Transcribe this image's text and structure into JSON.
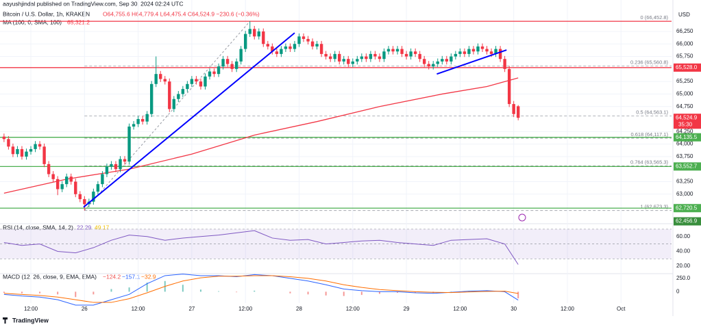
{
  "chart_data": {
    "type": "candlestick",
    "byline": "aayushjindal published on TradingView.com, Sep 30, 2024 02:24 UTC",
    "symbol": "Bitcoin / U.S. Dollar, 1h, KRAKEN",
    "ohlc_text": "O64,755.6  H64,779.4  L64,475.4  C64,524.9  −230.6 (−0.36%)",
    "currency": "USD",
    "watermark": "TradingView",
    "up_color": "#089981",
    "down_color": "#f23645",
    "grid": true,
    "xlim": [
      5.1,
      155.3
    ],
    "xticks": [
      {
        "value": 12,
        "label": "12:00"
      },
      {
        "value": 24,
        "label": "26"
      },
      {
        "value": 36,
        "label": "12:00"
      },
      {
        "value": 48,
        "label": "27"
      },
      {
        "value": 60,
        "label": "12:00"
      },
      {
        "value": 72,
        "label": "28"
      },
      {
        "value": 84,
        "label": "12:00"
      },
      {
        "value": 96,
        "label": "29"
      },
      {
        "value": 108,
        "label": "12:00"
      },
      {
        "value": 120,
        "label": "30"
      },
      {
        "value": 132,
        "label": "12:00"
      },
      {
        "value": 144,
        "label": "Oct"
      }
    ],
    "ylim": [
      62437,
      66878
    ],
    "yticks": [
      {
        "value": 66250,
        "label": "66,250"
      },
      {
        "value": 66000,
        "label": "66,000"
      },
      {
        "value": 65750,
        "label": "65,750"
      },
      {
        "value": 65250,
        "label": "65,250"
      },
      {
        "value": 65000,
        "label": "65,000"
      },
      {
        "value": 64750,
        "label": "64,750"
      },
      {
        "value": 64250,
        "label": "64,250"
      },
      {
        "value": 64000,
        "label": "64,000"
      },
      {
        "value": 63750,
        "label": "63,750"
      },
      {
        "value": 63250,
        "label": "63,250"
      },
      {
        "value": 63000,
        "label": "63,000"
      }
    ],
    "x": [
      6,
      7,
      8,
      9,
      10,
      11,
      12,
      13,
      14,
      15,
      16,
      17,
      18,
      19,
      20,
      21,
      22,
      23,
      24,
      25,
      26,
      27,
      28,
      29,
      30,
      31,
      32,
      33,
      34,
      35,
      36,
      37,
      38,
      39,
      40,
      41,
      42,
      43,
      44,
      45,
      46,
      47,
      48,
      49,
      50,
      51,
      52,
      53,
      54,
      55,
      56,
      57,
      58,
      59,
      60,
      61,
      62,
      63,
      64,
      65,
      66,
      67,
      68,
      69,
      70,
      71,
      72,
      73,
      74,
      75,
      76,
      77,
      78,
      79,
      80,
      81,
      82,
      83,
      84,
      85,
      86,
      87,
      88,
      89,
      90,
      91,
      92,
      93,
      94,
      95,
      96,
      97,
      98,
      99,
      100,
      101,
      102,
      103,
      104,
      105,
      106,
      107,
      108,
      109,
      110,
      111,
      112,
      113,
      114,
      115,
      116,
      117,
      118,
      119,
      120,
      121
    ],
    "candles": [
      [
        64150,
        64210,
        64040,
        64100
      ],
      [
        64100,
        64160,
        63890,
        63950
      ],
      [
        63950,
        64010,
        63740,
        63800
      ],
      [
        63800,
        63960,
        63740,
        63900
      ],
      [
        63900,
        63960,
        63690,
        63750
      ],
      [
        63750,
        63910,
        63690,
        63850
      ],
      [
        63850,
        63960,
        63790,
        63900
      ],
      [
        63900,
        64060,
        63840,
        64000
      ],
      [
        64000,
        64060,
        63890,
        63950
      ],
      [
        63950,
        64010,
        63540,
        63600
      ],
      [
        63600,
        63660,
        63340,
        63400
      ],
      [
        63400,
        63460,
        63240,
        63300
      ],
      [
        63300,
        63360,
        62980,
        63100
      ],
      [
        63100,
        63260,
        63040,
        63200
      ],
      [
        63200,
        63410,
        63140,
        63350
      ],
      [
        63350,
        63410,
        63190,
        63250
      ],
      [
        63250,
        63310,
        62940,
        63000
      ],
      [
        63000,
        63060,
        62840,
        62900
      ],
      [
        62900,
        62960,
        62673,
        62800
      ],
      [
        62800,
        62910,
        62740,
        62850
      ],
      [
        62850,
        63110,
        62790,
        63050
      ],
      [
        63050,
        63260,
        62990,
        63200
      ],
      [
        63200,
        63460,
        63140,
        63400
      ],
      [
        63400,
        63610,
        63340,
        63550
      ],
      [
        63550,
        63660,
        63490,
        63600
      ],
      [
        63600,
        63660,
        63440,
        63500
      ],
      [
        63500,
        63760,
        63440,
        63700
      ],
      [
        63700,
        63760,
        63590,
        63650
      ],
      [
        63650,
        64410,
        63590,
        64350
      ],
      [
        64350,
        64460,
        64290,
        64400
      ],
      [
        64400,
        64560,
        64340,
        64500
      ],
      [
        64500,
        64560,
        64390,
        64450
      ],
      [
        64450,
        64660,
        64390,
        64600
      ],
      [
        64600,
        65260,
        64540,
        65200
      ],
      [
        65200,
        65750,
        65140,
        65400
      ],
      [
        65400,
        65460,
        65240,
        65300
      ],
      [
        65300,
        65360,
        65190,
        65250
      ],
      [
        65250,
        65310,
        64640,
        64700
      ],
      [
        64700,
        64960,
        64640,
        64900
      ],
      [
        64900,
        65060,
        64840,
        65000
      ],
      [
        65000,
        65160,
        64940,
        65100
      ],
      [
        65100,
        65260,
        65040,
        65200
      ],
      [
        65200,
        65360,
        65140,
        65300
      ],
      [
        65300,
        65360,
        65190,
        65250
      ],
      [
        65250,
        65310,
        65090,
        65150
      ],
      [
        65150,
        65410,
        65090,
        65350
      ],
      [
        65350,
        65510,
        65290,
        65450
      ],
      [
        65450,
        65510,
        65340,
        65400
      ],
      [
        65400,
        65610,
        65340,
        65550
      ],
      [
        65550,
        65760,
        65490,
        65700
      ],
      [
        65700,
        65760,
        65540,
        65600
      ],
      [
        65600,
        65660,
        65440,
        65500
      ],
      [
        65500,
        65710,
        65440,
        65650
      ],
      [
        65650,
        65960,
        65590,
        65900
      ],
      [
        65900,
        66260,
        65840,
        66200
      ],
      [
        66200,
        66452.8,
        66140,
        66300
      ],
      [
        66300,
        66360,
        66090,
        66150
      ],
      [
        66150,
        66310,
        66090,
        66250
      ],
      [
        66250,
        66310,
        65940,
        66000
      ],
      [
        66000,
        66060,
        65890,
        65950
      ],
      [
        65950,
        66010,
        65790,
        65850
      ],
      [
        65850,
        65910,
        65740,
        65800
      ],
      [
        65800,
        65960,
        65740,
        65900
      ],
      [
        65900,
        66010,
        65840,
        65950
      ],
      [
        65950,
        66010,
        65840,
        65900
      ],
      [
        65900,
        66060,
        65840,
        66000
      ],
      [
        66000,
        66210,
        65940,
        66150
      ],
      [
        66150,
        66210,
        66040,
        66100
      ],
      [
        66100,
        66160,
        65990,
        66050
      ],
      [
        66050,
        66110,
        65890,
        65950
      ],
      [
        65950,
        66060,
        65890,
        66000
      ],
      [
        66000,
        66060,
        65740,
        65800
      ],
      [
        65800,
        65860,
        65690,
        65750
      ],
      [
        65750,
        65810,
        65640,
        65700
      ],
      [
        65700,
        65860,
        65640,
        65800
      ],
      [
        65800,
        65860,
        65590,
        65650
      ],
      [
        65650,
        65760,
        65590,
        65700
      ],
      [
        65700,
        65760,
        65540,
        65600
      ],
      [
        65600,
        65710,
        65540,
        65650
      ],
      [
        65650,
        65760,
        65590,
        65700
      ],
      [
        65700,
        65810,
        65640,
        65750
      ],
      [
        65750,
        65810,
        65640,
        65700
      ],
      [
        65700,
        65860,
        65640,
        65800
      ],
      [
        65800,
        65860,
        65690,
        65750
      ],
      [
        65750,
        65810,
        65640,
        65700
      ],
      [
        65700,
        65910,
        65640,
        65850
      ],
      [
        65850,
        65960,
        65790,
        65900
      ],
      [
        65900,
        65960,
        65790,
        65850
      ],
      [
        65850,
        65960,
        65790,
        65900
      ],
      [
        65900,
        65960,
        65740,
        65800
      ],
      [
        65800,
        65860,
        65690,
        65750
      ],
      [
        65750,
        65910,
        65690,
        65850
      ],
      [
        65850,
        65910,
        65740,
        65800
      ],
      [
        65800,
        65860,
        65640,
        65700
      ],
      [
        65700,
        65760,
        65540,
        65600
      ],
      [
        65600,
        65660,
        65490,
        65550
      ],
      [
        65550,
        65660,
        65490,
        65600
      ],
      [
        65600,
        65710,
        65540,
        65650
      ],
      [
        65650,
        65760,
        65590,
        65700
      ],
      [
        65700,
        65760,
        65590,
        65650
      ],
      [
        65650,
        65810,
        65590,
        65750
      ],
      [
        65750,
        65860,
        65690,
        65800
      ],
      [
        65800,
        65910,
        65740,
        65850
      ],
      [
        65850,
        65910,
        65740,
        65800
      ],
      [
        65800,
        65960,
        65740,
        65900
      ],
      [
        65900,
        65960,
        65790,
        65850
      ],
      [
        65850,
        66010,
        65790,
        65950
      ],
      [
        65950,
        66010,
        65840,
        65900
      ],
      [
        65900,
        65960,
        65790,
        65850
      ],
      [
        65850,
        65910,
        65740,
        65800
      ],
      [
        65800,
        65960,
        65740,
        65900
      ],
      [
        65900,
        65960,
        65640,
        65700
      ],
      [
        65700,
        65760,
        65440,
        65500
      ],
      [
        65500,
        65560,
        64740,
        64800
      ],
      [
        64800,
        64860,
        64540,
        64600
      ],
      [
        64755.6,
        64779.4,
        64475.4,
        64524.9
      ]
    ],
    "ma": {
      "name": "MA (100, 0, SMA, 100)",
      "value_label": "65,321.2",
      "color": "#f23645",
      "x": [
        6,
        20,
        34,
        48,
        62,
        76,
        90,
        104,
        114,
        121
      ],
      "values": [
        63020,
        63300,
        63500,
        63800,
        64180,
        64450,
        64750,
        65000,
        65150,
        65321.2
      ]
    },
    "trendlines": [
      {
        "color": "#0000ff",
        "x": [
          23.8,
          71
        ],
        "values": [
          62740,
          66220
        ]
      },
      {
        "color": "#0000ff",
        "x": [
          102.8,
          118.4
        ],
        "values": [
          65400,
          65880
        ]
      }
    ],
    "fib": {
      "color": "#9598a1",
      "x": [
        24,
        61
      ],
      "values": [
        62673.3,
        66452.8
      ],
      "levels": [
        {
          "value": 66452.8,
          "label": "0 (66,452.8)"
        },
        {
          "value": 65560.8,
          "label": "0.236 (65,560.8)"
        },
        {
          "value": 64563.1,
          "label": "0.5 (64,563.1)"
        },
        {
          "value": 64117.1,
          "label": "0.618 (64,117.1)"
        },
        {
          "value": 63565.3,
          "label": "0.764 (63,565.3)"
        },
        {
          "value": 62673.3,
          "label": "1 (62,673.3)"
        }
      ]
    },
    "hlines": [
      {
        "value": 66452.8,
        "color": "#f23645"
      },
      {
        "value": 65528.0,
        "label": "65,528.0",
        "color": "#f23645"
      },
      {
        "value": 64135.5,
        "label": "64,135.5",
        "color": "#4caf50"
      },
      {
        "value": 63552.7,
        "label": "63,552.7",
        "color": "#4caf50"
      },
      {
        "value": 62720.5,
        "label": "62,720.5",
        "color": "#4caf50"
      }
    ],
    "price_boxes": [
      {
        "value": 64524.9,
        "label": "64,524.9",
        "sub": "35:30",
        "color": "#f23645"
      },
      {
        "value": 62456.9,
        "label": "62,456.9",
        "color": "#388e3c"
      }
    ],
    "rsi": {
      "title": "RSI (14, close, SMA, 14, 2)",
      "readout": [
        "22.29",
        "49.17"
      ],
      "color": "#7e57c2",
      "ylim": [
        10.9,
        76.4
      ],
      "band": [
        30,
        70
      ],
      "levels": [
        70,
        50,
        30
      ],
      "yticks": [
        {
          "value": 60,
          "label": "60.00"
        },
        {
          "value": 40,
          "label": "40.00"
        },
        {
          "value": 20,
          "label": "20.00"
        }
      ],
      "x": [
        6,
        10,
        14,
        18,
        22,
        26,
        30,
        34,
        38,
        42,
        46,
        50,
        54,
        58,
        62,
        66,
        70,
        74,
        78,
        82,
        86,
        90,
        94,
        98,
        102,
        106,
        110,
        114,
        118,
        121
      ],
      "values": [
        52,
        48,
        50,
        40,
        38,
        45,
        55,
        62,
        60,
        55,
        58,
        60,
        62,
        65,
        68,
        58,
        55,
        56,
        50,
        52,
        54,
        55,
        52,
        50,
        48,
        55,
        56,
        57,
        50,
        22.29
      ]
    },
    "macd": {
      "title": "MACD (12, 26, close, 9, EMA, EMA)",
      "readout": [
        "−124.2",
        "−157.1",
        "−32.9"
      ],
      "macd_color": "#2962ff",
      "signal_color": "#ff6d00",
      "up_color": "#26a69a",
      "down_color": "#ef5350",
      "ylim": [
        -212,
        325
      ],
      "yticks": [
        {
          "value": 250,
          "label": "250.0"
        },
        0
      ],
      "x": [
        6,
        10,
        14,
        18,
        22,
        26,
        30,
        34,
        38,
        42,
        46,
        50,
        54,
        58,
        62,
        66,
        70,
        74,
        78,
        82,
        86,
        90,
        94,
        98,
        102,
        106,
        110,
        114,
        118,
        121
      ],
      "macd": [
        -50,
        -80,
        -100,
        -150,
        -250,
        -250,
        -150,
        -50,
        150,
        300,
        330,
        300,
        300,
        280,
        320,
        300,
        250,
        200,
        130,
        50,
        20,
        0,
        0,
        -20,
        -30,
        -10,
        10,
        20,
        0,
        -157.1
      ],
      "signal": [
        -30,
        -50,
        -70,
        -100,
        -150,
        -200,
        -200,
        -130,
        -20,
        100,
        200,
        260,
        290,
        290,
        300,
        300,
        280,
        250,
        200,
        130,
        80,
        40,
        20,
        0,
        -10,
        -15,
        -5,
        5,
        10,
        -32.9
      ],
      "histogram": [
        -20,
        -30,
        -30,
        -50,
        -100,
        -50,
        50,
        80,
        170,
        200,
        130,
        40,
        10,
        -10,
        20,
        0,
        -30,
        -50,
        -70,
        -80,
        -60,
        -40,
        -20,
        -20,
        -20,
        5,
        15,
        15,
        -10,
        -124.2
      ]
    }
  }
}
